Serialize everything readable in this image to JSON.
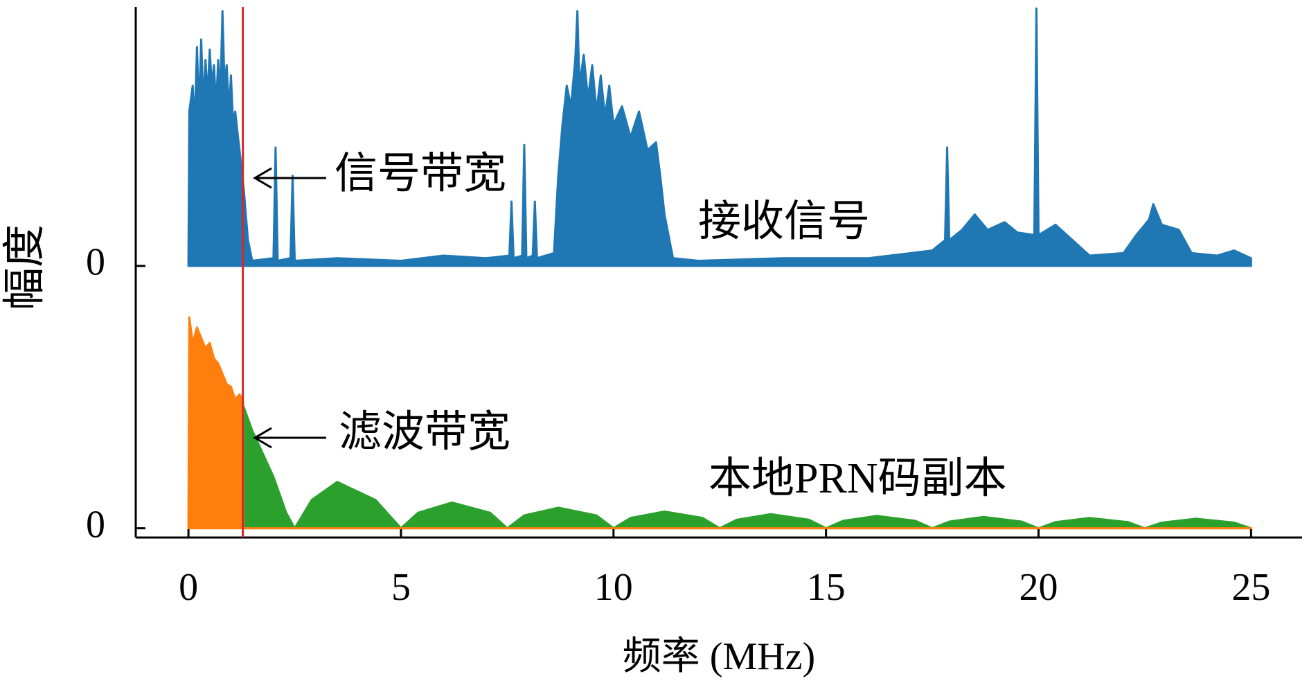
{
  "chart_data": [
    {
      "type": "area",
      "xlabel": "频率 (MHz)",
      "ylabel": "幅度",
      "xlim": [
        -1.24,
        26.2
      ],
      "xticks": [
        0,
        5,
        10,
        15,
        20,
        25
      ],
      "ylim": [
        -1.055,
        1.006
      ],
      "yticks": [
        0
      ],
      "cutoff": 1.28,
      "cutoff_color": "#d62728",
      "annotations": [
        "信号带宽"
      ],
      "series": [
        {
          "name": "接收信号",
          "color": "#1f77b4",
          "x": [
            0,
            0.02,
            0.1,
            0.15,
            0.2,
            0.25,
            0.3,
            0.35,
            0.4,
            0.45,
            0.5,
            0.55,
            0.6,
            0.65,
            0.7,
            0.75,
            0.8,
            0.85,
            0.9,
            0.95,
            1.0,
            1.05,
            1.1,
            1.2,
            1.3,
            1.4,
            1.5,
            2.0,
            2.05,
            2.1,
            2.4,
            2.45,
            2.5,
            3.5,
            5.0,
            6.0,
            7.0,
            7.55,
            7.6,
            7.65,
            7.85,
            7.9,
            7.95,
            8.1,
            8.15,
            8.2,
            8.6,
            8.7,
            8.8,
            8.9,
            9.0,
            9.1,
            9.15,
            9.2,
            9.3,
            9.4,
            9.5,
            9.6,
            9.7,
            9.8,
            9.9,
            10.0,
            10.2,
            10.4,
            10.6,
            10.8,
            11.0,
            11.1,
            11.2,
            11.4,
            12,
            14,
            16,
            17,
            17.5,
            17.8,
            17.85,
            17.9,
            18.2,
            18.5,
            18.8,
            19.2,
            19.5,
            19.9,
            19.95,
            20.0,
            20.4,
            20.8,
            21.2,
            22.0,
            22.3,
            22.6,
            22.7,
            22.9,
            23.3,
            23.6,
            24.2,
            24.6,
            25
          ],
          "values": [
            0.02,
            0.6,
            0.7,
            0.55,
            0.85,
            0.6,
            0.88,
            0.62,
            0.8,
            0.66,
            0.84,
            0.7,
            0.78,
            0.62,
            0.8,
            0.66,
            0.99,
            0.7,
            0.78,
            0.6,
            0.74,
            0.55,
            0.6,
            0.45,
            0.3,
            0.1,
            0.02,
            0.03,
            0.46,
            0.02,
            0.03,
            0.35,
            0.02,
            0.03,
            0.02,
            0.04,
            0.03,
            0.04,
            0.25,
            0.03,
            0.04,
            0.47,
            0.03,
            0.04,
            0.25,
            0.03,
            0.05,
            0.35,
            0.55,
            0.7,
            0.62,
            0.8,
            0.99,
            0.7,
            0.82,
            0.65,
            0.78,
            0.6,
            0.74,
            0.58,
            0.7,
            0.55,
            0.62,
            0.5,
            0.6,
            0.45,
            0.48,
            0.35,
            0.2,
            0.03,
            0.02,
            0.03,
            0.03,
            0.05,
            0.06,
            0.1,
            0.46,
            0.1,
            0.14,
            0.2,
            0.14,
            0.17,
            0.13,
            0.12,
            1.0,
            0.12,
            0.16,
            0.1,
            0.04,
            0.05,
            0.12,
            0.18,
            0.24,
            0.16,
            0.14,
            0.05,
            0.04,
            0.06,
            0.03
          ]
        }
      ]
    },
    {
      "type": "area",
      "ylim": [
        -0.036,
        2.026
      ],
      "yticks": [
        0
      ],
      "annotations": [
        "滤波带宽",
        "本地PRN码副本"
      ],
      "series": [
        {
          "color": "#2ca02c",
          "x": [
            1.28,
            1.5,
            2.0,
            2.3,
            2.5,
            2.9,
            3.5,
            4.4,
            5.0,
            5.4,
            6.2,
            7.1,
            7.5,
            7.9,
            8.7,
            9.6,
            10.0,
            10.4,
            11.2,
            12.1,
            12.5,
            12.9,
            13.7,
            14.6,
            15.0,
            15.4,
            16.2,
            17.1,
            17.5,
            17.9,
            18.7,
            19.6,
            20.0,
            20.4,
            21.2,
            22.1,
            22.5,
            22.9,
            23.7,
            24.6,
            25.0
          ],
          "values": [
            0.48,
            0.38,
            0.2,
            0.06,
            0,
            0.11,
            0.18,
            0.11,
            0,
            0.06,
            0.1,
            0.06,
            0,
            0.05,
            0.08,
            0.05,
            0,
            0.04,
            0.065,
            0.04,
            0,
            0.033,
            0.055,
            0.033,
            0,
            0.029,
            0.048,
            0.029,
            0,
            0.026,
            0.044,
            0.026,
            0,
            0.024,
            0.04,
            0.024,
            0,
            0.022,
            0.037,
            0.022,
            0
          ]
        },
        {
          "color": "#ff7f0e",
          "x": [
            0,
            0.02,
            0.1,
            0.2,
            0.3,
            0.4,
            0.5,
            0.6,
            0.7,
            0.8,
            0.9,
            1.0,
            1.1,
            1.2,
            1.28,
            1.29,
            25
          ],
          "values": [
            0.05,
            0.82,
            0.72,
            0.78,
            0.74,
            0.7,
            0.72,
            0.66,
            0.64,
            0.6,
            0.56,
            0.55,
            0.5,
            0.52,
            0.5,
            0,
            0
          ]
        }
      ]
    }
  ]
}
